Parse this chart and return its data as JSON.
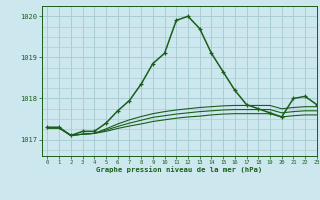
{
  "title": "Graphe pression niveau de la mer (hPa)",
  "background_color": "#cce8ee",
  "grid_color": "#aacdd4",
  "line_color": "#1a5e1a",
  "xlim": [
    -0.5,
    23
  ],
  "ylim": [
    1016.6,
    1020.25
  ],
  "yticks": [
    1017,
    1018,
    1019,
    1020
  ],
  "xticks": [
    0,
    1,
    2,
    3,
    4,
    5,
    6,
    7,
    8,
    9,
    10,
    11,
    12,
    13,
    14,
    15,
    16,
    17,
    18,
    19,
    20,
    21,
    22,
    23
  ],
  "series": [
    {
      "x": [
        0,
        1,
        2,
        3,
        4,
        5,
        6,
        7,
        8,
        9,
        10,
        11,
        12,
        13,
        14,
        15,
        16,
        17,
        18,
        19,
        20,
        21,
        22,
        23
      ],
      "y": [
        1017.3,
        1017.3,
        1017.1,
        1017.2,
        1017.2,
        1017.4,
        1017.7,
        1017.95,
        1018.35,
        1018.85,
        1019.1,
        1019.9,
        1020.0,
        1019.7,
        1019.1,
        1018.65,
        1018.2,
        1017.85,
        1017.75,
        1017.65,
        1017.55,
        1018.0,
        1018.05,
        1017.85
      ],
      "marker": "+",
      "lw": 1.1,
      "ms": 3.5
    },
    {
      "x": [
        0,
        1,
        2,
        3,
        4,
        5,
        6,
        7,
        8,
        9,
        10,
        11,
        12,
        13,
        14,
        15,
        16,
        17,
        18,
        19,
        20,
        21,
        22,
        23
      ],
      "y": [
        1017.28,
        1017.28,
        1017.1,
        1017.13,
        1017.15,
        1017.2,
        1017.27,
        1017.33,
        1017.38,
        1017.44,
        1017.48,
        1017.52,
        1017.55,
        1017.57,
        1017.6,
        1017.62,
        1017.63,
        1017.63,
        1017.63,
        1017.63,
        1017.55,
        1017.58,
        1017.6,
        1017.6
      ],
      "marker": null,
      "lw": 0.8
    },
    {
      "x": [
        0,
        1,
        2,
        3,
        4,
        5,
        6,
        7,
        8,
        9,
        10,
        11,
        12,
        13,
        14,
        15,
        16,
        17,
        18,
        19,
        20,
        21,
        22,
        23
      ],
      "y": [
        1017.28,
        1017.28,
        1017.1,
        1017.13,
        1017.15,
        1017.23,
        1017.32,
        1017.4,
        1017.47,
        1017.54,
        1017.58,
        1017.62,
        1017.65,
        1017.68,
        1017.7,
        1017.72,
        1017.73,
        1017.73,
        1017.73,
        1017.73,
        1017.65,
        1017.68,
        1017.7,
        1017.7
      ],
      "marker": null,
      "lw": 0.8
    },
    {
      "x": [
        0,
        1,
        2,
        3,
        4,
        5,
        6,
        7,
        8,
        9,
        10,
        11,
        12,
        13,
        14,
        15,
        16,
        17,
        18,
        19,
        20,
        21,
        22,
        23
      ],
      "y": [
        1017.28,
        1017.28,
        1017.1,
        1017.13,
        1017.15,
        1017.26,
        1017.38,
        1017.48,
        1017.56,
        1017.63,
        1017.68,
        1017.72,
        1017.75,
        1017.78,
        1017.8,
        1017.82,
        1017.83,
        1017.83,
        1017.83,
        1017.83,
        1017.75,
        1017.78,
        1017.8,
        1017.8
      ],
      "marker": null,
      "lw": 0.8
    }
  ]
}
